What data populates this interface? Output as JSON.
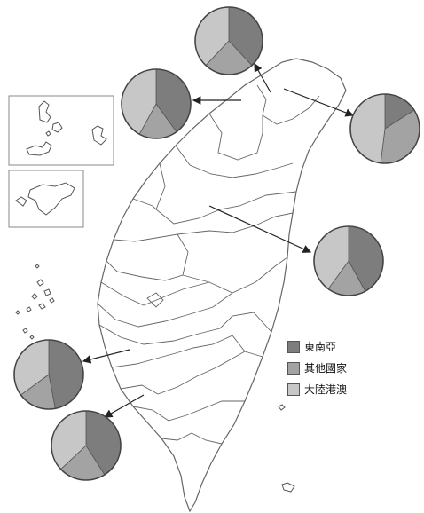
{
  "colors": {
    "southeast_asia": "#7d7d7d",
    "other_countries": "#a3a3a3",
    "mainland_hk_macau": "#c7c7c7",
    "map_outline": "#666666",
    "arrow": "#222222"
  },
  "legend": {
    "items": [
      {
        "label": "東南亞",
        "color": "#7d7d7d"
      },
      {
        "label": "其他國家",
        "color": "#a3a3a3"
      },
      {
        "label": "大陸港澳",
        "color": "#c7c7c7"
      }
    ]
  },
  "pies": [
    {
      "id": "top",
      "slices": [
        0.38,
        0.24,
        0.38
      ]
    },
    {
      "id": "upper-left",
      "slices": [
        0.4,
        0.18,
        0.42
      ]
    },
    {
      "id": "northeast",
      "slices": [
        0.16,
        0.36,
        0.48
      ]
    },
    {
      "id": "central",
      "slices": [
        0.42,
        0.18,
        0.4
      ]
    },
    {
      "id": "southwest",
      "slices": [
        0.47,
        0.18,
        0.35
      ]
    },
    {
      "id": "south",
      "slices": [
        0.41,
        0.22,
        0.37
      ]
    }
  ]
}
